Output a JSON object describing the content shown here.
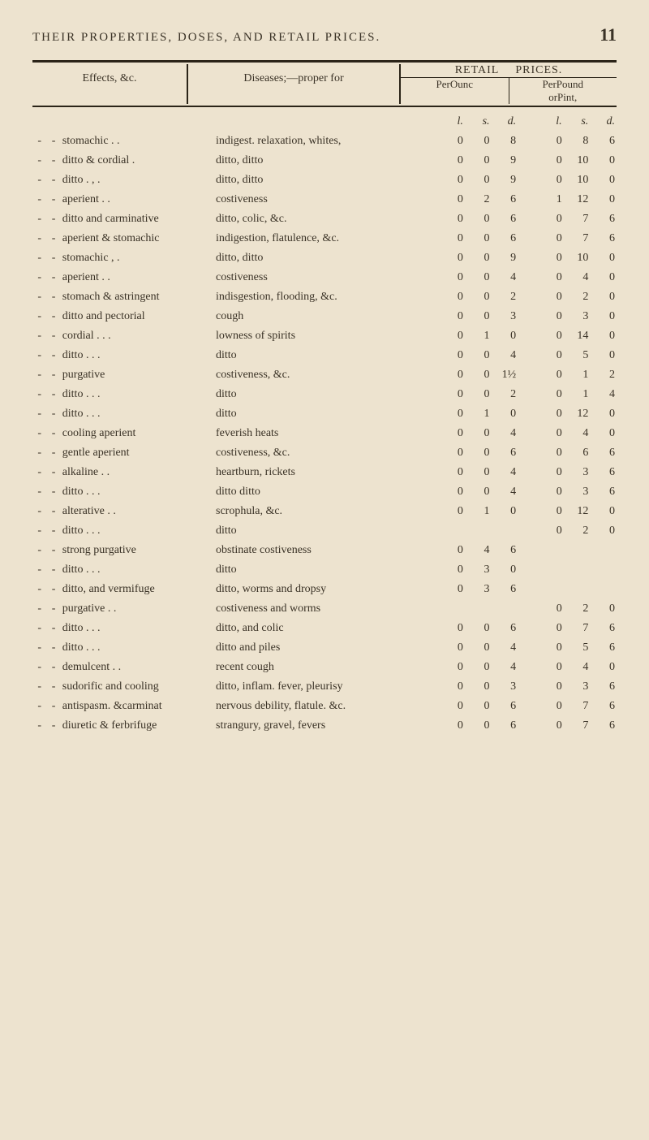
{
  "header": {
    "title": "THEIR PROPERTIES, DOSES, AND RETAIL PRICES.",
    "page_number": "11"
  },
  "columns": {
    "effects": "Effects, &c.",
    "diseases": "Diseases;—proper for",
    "retail": "RETAIL",
    "prices": "PRICES.",
    "per_ounc": "PerOunc",
    "per_pound": "PerPound",
    "or_pint": "orPint,",
    "lsd": [
      "l.",
      "s.",
      "d."
    ]
  },
  "rows": [
    {
      "effect": "stomachic     .  .",
      "disease": "indigest. relaxation, whites,",
      "a": [
        "0",
        "0",
        "8"
      ],
      "b": [
        "0",
        "8",
        "6"
      ]
    },
    {
      "effect": "ditto & cordial  .",
      "disease": "ditto,            ditto",
      "a": [
        "0",
        "0",
        "9"
      ],
      "b": [
        "0",
        "10",
        "0"
      ]
    },
    {
      "effect": "ditto     .  ,  .",
      "disease": "ditto,            ditto",
      "a": [
        "0",
        "0",
        "9"
      ],
      "b": [
        "0",
        "10",
        "0"
      ]
    },
    {
      "effect": "aperient     .  .",
      "disease": "costiveness",
      "a": [
        "0",
        "2",
        "6"
      ],
      "b": [
        "1",
        "12",
        "0"
      ]
    },
    {
      "effect": "ditto and carminative",
      "disease": "ditto, colic, &c.",
      "a": [
        "0",
        "0",
        "6"
      ],
      "b": [
        "0",
        "7",
        "6"
      ]
    },
    {
      "effect": "aperient & stomachic",
      "disease": "indigestion, flatulence, &c.",
      "a": [
        "0",
        "0",
        "6"
      ],
      "b": [
        "0",
        "7",
        "6"
      ]
    },
    {
      "effect": "stomachic     ,  .",
      "disease": "ditto,            ditto",
      "a": [
        "0",
        "0",
        "9"
      ],
      "b": [
        "0",
        "10",
        "0"
      ]
    },
    {
      "effect": "aperient     .  .",
      "disease": "costiveness",
      "a": [
        "0",
        "0",
        "4"
      ],
      "b": [
        "0",
        "4",
        "0"
      ]
    },
    {
      "effect": "stomach & astringent",
      "disease": "indisgestion, flooding, &c.",
      "a": [
        "0",
        "0",
        "2"
      ],
      "b": [
        "0",
        "2",
        "0"
      ]
    },
    {
      "effect": "ditto and pectorial",
      "disease": "cough",
      "a": [
        "0",
        "0",
        "3"
      ],
      "b": [
        "0",
        "3",
        "0"
      ]
    },
    {
      "effect": "cordial     .  .  .",
      "disease": "lowness of spirits",
      "a": [
        "0",
        "1",
        "0"
      ],
      "b": [
        "0",
        "14",
        "0"
      ]
    },
    {
      "effect": "ditto     .  .  .",
      "disease": "ditto",
      "a": [
        "0",
        "0",
        "4"
      ],
      "b": [
        "0",
        "5",
        "0"
      ]
    },
    {
      "effect": "purgative",
      "disease": "costiveness, &c.",
      "a": [
        "0",
        "0",
        "1½"
      ],
      "b": [
        "0",
        "1",
        "2"
      ]
    },
    {
      "effect": "ditto     .  .  .",
      "disease": "ditto",
      "a": [
        "0",
        "0",
        "2"
      ],
      "b": [
        "0",
        "1",
        "4"
      ]
    },
    {
      "effect": "ditto     .  .  .",
      "disease": "ditto",
      "a": [
        "0",
        "1",
        "0"
      ],
      "b": [
        "0",
        "12",
        "0"
      ]
    },
    {
      "effect": "cooling aperient",
      "disease": "feverish heats",
      "a": [
        "0",
        "0",
        "4"
      ],
      "b": [
        "0",
        "4",
        "0"
      ]
    },
    {
      "effect": "gentle aperient",
      "disease": "costiveness, &c.",
      "a": [
        "0",
        "0",
        "6"
      ],
      "b": [
        "0",
        "6",
        "6"
      ]
    },
    {
      "effect": "alkaline     .  .",
      "disease": "heartburn, rickets",
      "a": [
        "0",
        "0",
        "4"
      ],
      "b": [
        "0",
        "3",
        "6"
      ]
    },
    {
      "effect": "ditto     .  .  .",
      "disease": "ditto      ditto",
      "a": [
        "0",
        "0",
        "4"
      ],
      "b": [
        "0",
        "3",
        "6"
      ]
    },
    {
      "effect": "alterative     .  .",
      "disease": "scrophula, &c.",
      "a": [
        "0",
        "1",
        "0"
      ],
      "b": [
        "0",
        "12",
        "0"
      ]
    },
    {
      "effect": "ditto     .  .  .",
      "disease": "ditto",
      "a": [
        "",
        "",
        ""
      ],
      "b": [
        "0",
        "2",
        "0"
      ]
    },
    {
      "effect": "strong purgative",
      "disease": "obstinate costiveness",
      "a": [
        "0",
        "4",
        "6"
      ],
      "b": [
        "",
        "",
        ""
      ]
    },
    {
      "effect": "ditto     .  .  .",
      "disease": "ditto",
      "a": [
        "0",
        "3",
        "0"
      ],
      "b": [
        "",
        "",
        ""
      ]
    },
    {
      "effect": "ditto, and vermifuge",
      "disease": "ditto, worms and dropsy",
      "a": [
        "0",
        "3",
        "6"
      ],
      "b": [
        "",
        "",
        ""
      ]
    },
    {
      "effect": "purgative     .  .",
      "disease": "costiveness and worms",
      "a": [
        "",
        "",
        ""
      ],
      "b": [
        "0",
        "2",
        "0"
      ]
    },
    {
      "effect": "ditto     .  .  .",
      "disease": "ditto, and colic",
      "a": [
        "0",
        "0",
        "6"
      ],
      "b": [
        "0",
        "7",
        "6"
      ]
    },
    {
      "effect": "ditto     .  .  .",
      "disease": "ditto and piles",
      "a": [
        "0",
        "0",
        "4"
      ],
      "b": [
        "0",
        "5",
        "6"
      ]
    },
    {
      "effect": "demulcent     .  .",
      "disease": "recent cough",
      "a": [
        "0",
        "0",
        "4"
      ],
      "b": [
        "0",
        "4",
        "0"
      ]
    },
    {
      "effect": "sudorific and cooling",
      "disease": "ditto, inflam. fever, pleurisy",
      "a": [
        "0",
        "0",
        "3"
      ],
      "b": [
        "0",
        "3",
        "6"
      ]
    },
    {
      "effect": "antispasm. &carminat",
      "disease": "nervous debility, flatule. &c.",
      "a": [
        "0",
        "0",
        "6"
      ],
      "b": [
        "0",
        "7",
        "6"
      ]
    },
    {
      "effect": "diuretic & ferbrifuge",
      "disease": "strangury, gravel, fevers",
      "a": [
        "0",
        "0",
        "6"
      ],
      "b": [
        "0",
        "7",
        "6"
      ]
    }
  ]
}
